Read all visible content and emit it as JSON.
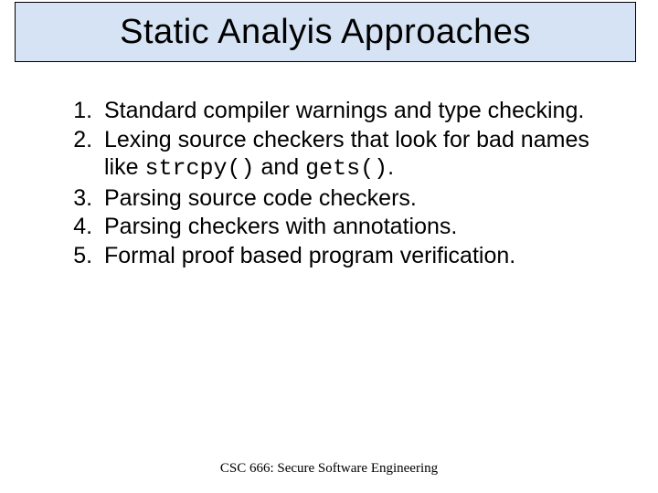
{
  "slide": {
    "title": "Static Analyis Approaches",
    "title_box": {
      "bg_color": "#d6e3f4",
      "border_color": "#000000",
      "title_fontsize": 38
    },
    "list": {
      "fontsize": 25,
      "items": [
        {
          "pre": "Standard compiler warnings and type checking."
        },
        {
          "pre": "Lexing source checkers that look for bad names like ",
          "code1": "strcpy()",
          "mid": " and ",
          "code2": "gets()",
          "post": "."
        },
        {
          "pre": "Parsing source code checkers."
        },
        {
          "pre": "Parsing checkers with annotations."
        },
        {
          "pre": "Formal proof based program verification."
        }
      ]
    },
    "footer": "CSC 666: Secure Software Engineering",
    "background_color": "#ffffff"
  }
}
